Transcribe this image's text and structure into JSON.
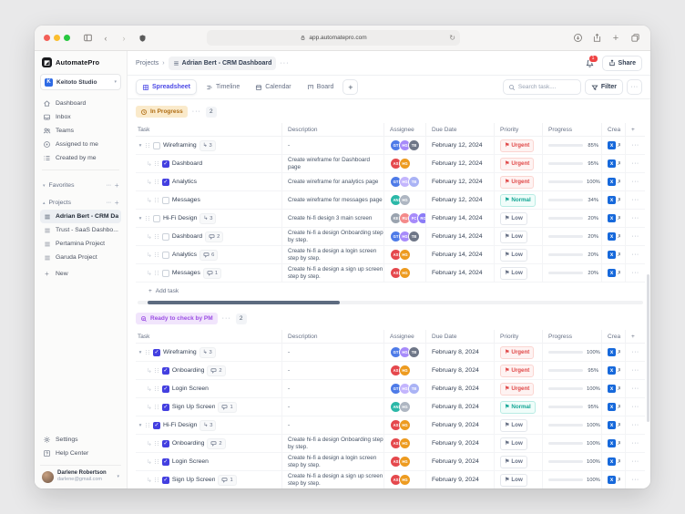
{
  "browser": {
    "url": "app.automatepro.com"
  },
  "brand": {
    "name": "AutomatePro"
  },
  "sidebar": {
    "workspace": {
      "name": "Keitoto Studio",
      "initial": "K"
    },
    "nav": [
      {
        "icon": "home-icon",
        "label": "Dashboard"
      },
      {
        "icon": "inbox-icon",
        "label": "Inbox"
      },
      {
        "icon": "users-icon",
        "label": "Teams"
      },
      {
        "icon": "target-icon",
        "label": "Assigned to me"
      },
      {
        "icon": "list-icon",
        "label": "Created by me"
      }
    ],
    "sections": {
      "favorites": "Favorites",
      "projects": "Projects"
    },
    "projects": [
      {
        "label": "Adrian Bert - CRM Da...",
        "active": true
      },
      {
        "label": "Trust - SaaS Dashbo...",
        "active": false
      },
      {
        "label": "Pertamina Project",
        "active": false
      },
      {
        "label": "Garuda Project",
        "active": false
      }
    ],
    "new_label": "New",
    "footer": [
      {
        "icon": "gear-icon",
        "label": "Settings"
      },
      {
        "icon": "help-icon",
        "label": "Help Center"
      }
    ],
    "user": {
      "name": "Darlene Robertson",
      "email": "darlene@gmail.com"
    }
  },
  "header": {
    "breadcrumb_root": "Projects",
    "project_title": "Adrian Bert - CRM Dashboard",
    "notification_count": "1",
    "share_label": "Share"
  },
  "toolbar": {
    "tabs": [
      {
        "label": "Spreadsheet",
        "icon": "grid-icon",
        "active": true
      },
      {
        "label": "Timeline",
        "icon": "timeline-icon",
        "active": false
      },
      {
        "label": "Calendar",
        "icon": "calendar-icon",
        "active": false
      },
      {
        "label": "Board",
        "icon": "board-icon",
        "active": false
      }
    ],
    "search_placeholder": "Search task....",
    "filter_label": "Filter"
  },
  "table": {
    "columns": [
      "Task",
      "Description",
      "Assignee",
      "Due Date",
      "Priority",
      "Progress",
      "Crea"
    ]
  },
  "add_task_label": "Add task",
  "groups": [
    {
      "label": "In Progress",
      "count": "2",
      "theme": "amber",
      "icon": "clock-icon",
      "scrollbar": true,
      "rows": [
        {
          "type": "parent",
          "checked": false,
          "label": "Wireframing",
          "badge": {
            "kind": "subtask",
            "value": "3"
          },
          "desc": "-",
          "avatars": [
            {
              "t": "GT",
              "c": "#4e7be8"
            },
            {
              "t": "HG",
              "c": "#a78bfa"
            },
            {
              "t": "TB",
              "c": "#6e7687"
            }
          ],
          "due": "February 12, 2024",
          "priority": "Urgent",
          "priority_kind": "urgent",
          "progress": 85
        },
        {
          "type": "child",
          "checked": true,
          "label": "Dashboard",
          "badge": null,
          "desc": "Create wireframe for Dashboard page",
          "avatars": [
            {
              "t": "AS",
              "c": "#e5484d"
            },
            {
              "t": "HG",
              "c": "#ed9b20"
            }
          ],
          "due": "February 12, 2024",
          "priority": "Urgent",
          "priority_kind": "urgent",
          "progress": 95
        },
        {
          "type": "child",
          "checked": true,
          "label": "Analytics",
          "badge": null,
          "desc": "Create wireframe for analytics page",
          "avatars": [
            {
              "t": "GT",
              "c": "#4e7be8"
            },
            {
              "t": "HG",
              "c": "#c3b5fd"
            },
            {
              "t": "TB",
              "c": "#aab3f5"
            }
          ],
          "due": "February 12, 2024",
          "priority": "Urgent",
          "priority_kind": "urgent",
          "progress": 100
        },
        {
          "type": "child",
          "checked": false,
          "label": "Messages",
          "badge": null,
          "desc": "Create wireframe for messages page",
          "avatars": [
            {
              "t": "AN",
              "c": "#2bb8a8"
            },
            {
              "t": "HG",
              "c": "#aeb6c2"
            }
          ],
          "due": "February 12, 2024",
          "priority": "Normal",
          "priority_kind": "normal",
          "progress": 34
        },
        {
          "type": "parent",
          "checked": false,
          "label": "Hi-Fi Design",
          "badge": {
            "kind": "subtask",
            "value": "3"
          },
          "desc": "Create hi-fi design  3 main screen",
          "avatars": [
            {
              "t": "KE",
              "c": "#9aa3af"
            },
            {
              "t": "RU",
              "c": "#f48a8a"
            },
            {
              "t": "FC",
              "c": "#a78bfa"
            },
            {
              "t": "RO",
              "c": "#8b7cf7"
            }
          ],
          "due": "February 14, 2024",
          "priority": "Low",
          "priority_kind": "low",
          "progress": 20
        },
        {
          "type": "child",
          "checked": false,
          "label": "Dashboard",
          "badge": {
            "kind": "comment",
            "value": "2"
          },
          "desc": "Create hi-fi a design Onboarding step by step.",
          "avatars": [
            {
              "t": "GT",
              "c": "#4e7be8"
            },
            {
              "t": "HG",
              "c": "#a78bfa"
            },
            {
              "t": "TB",
              "c": "#6e7687"
            }
          ],
          "due": "February 14, 2024",
          "priority": "Low",
          "priority_kind": "low",
          "progress": 20
        },
        {
          "type": "child",
          "checked": false,
          "label": "Analytics",
          "badge": {
            "kind": "comment",
            "value": "6"
          },
          "desc": "Create hi-fi a design a login screen step by step.",
          "avatars": [
            {
              "t": "AS",
              "c": "#e5484d"
            },
            {
              "t": "HG",
              "c": "#ed9b20"
            }
          ],
          "due": "February 14, 2024",
          "priority": "Low",
          "priority_kind": "low",
          "progress": 20
        },
        {
          "type": "child",
          "checked": false,
          "label": "Messages",
          "badge": {
            "kind": "comment",
            "value": "1"
          },
          "desc": "Create hi-fi a design a sign up screen step by step.",
          "avatars": [
            {
              "t": "AS",
              "c": "#e5484d"
            },
            {
              "t": "HG",
              "c": "#ed9b20"
            }
          ],
          "due": "February 14, 2024",
          "priority": "Low",
          "priority_kind": "low",
          "progress": 20
        }
      ]
    },
    {
      "label": "Ready to check by PM",
      "count": "2",
      "theme": "purple",
      "icon": "check-search-icon",
      "scrollbar": false,
      "rows": [
        {
          "type": "parent",
          "checked": true,
          "label": "Wireframing",
          "badge": {
            "kind": "subtask",
            "value": "3"
          },
          "desc": "-",
          "avatars": [
            {
              "t": "GT",
              "c": "#4e7be8"
            },
            {
              "t": "HG",
              "c": "#a78bfa"
            },
            {
              "t": "TB",
              "c": "#6e7687"
            }
          ],
          "due": "February 8, 2024",
          "priority": "Urgent",
          "priority_kind": "urgent",
          "progress": 100
        },
        {
          "type": "child",
          "checked": true,
          "label": "Onboarding",
          "badge": {
            "kind": "comment",
            "value": "2"
          },
          "desc": "-",
          "avatars": [
            {
              "t": "AS",
              "c": "#e5484d"
            },
            {
              "t": "HG",
              "c": "#ed9b20"
            }
          ],
          "due": "February 8, 2024",
          "priority": "Urgent",
          "priority_kind": "urgent",
          "progress": 95
        },
        {
          "type": "child",
          "checked": true,
          "label": "Login Screen",
          "badge": null,
          "desc": "-",
          "avatars": [
            {
              "t": "GT",
              "c": "#4e7be8"
            },
            {
              "t": "HG",
              "c": "#c3b5fd"
            },
            {
              "t": "TB",
              "c": "#aab3f5"
            }
          ],
          "due": "February 8, 2024",
          "priority": "Urgent",
          "priority_kind": "urgent",
          "progress": 100
        },
        {
          "type": "child",
          "checked": true,
          "label": "Sign Up Screen",
          "badge": {
            "kind": "comment",
            "value": "1"
          },
          "desc": "-",
          "avatars": [
            {
              "t": "AN",
              "c": "#2bb8a8"
            },
            {
              "t": "HG",
              "c": "#aeb6c2"
            }
          ],
          "due": "February 8, 2024",
          "priority": "Normal",
          "priority_kind": "normal",
          "progress": 95
        },
        {
          "type": "parent",
          "checked": true,
          "label": "Hi-Fi Design",
          "badge": {
            "kind": "subtask",
            "value": "3"
          },
          "desc": "-",
          "avatars": [
            {
              "t": "AS",
              "c": "#e5484d"
            },
            {
              "t": "HG",
              "c": "#ed9b20"
            }
          ],
          "due": "February 9, 2024",
          "priority": "Low",
          "priority_kind": "low",
          "progress": 100
        },
        {
          "type": "child",
          "checked": true,
          "label": "Onboarding",
          "badge": {
            "kind": "comment",
            "value": "2"
          },
          "desc": "Create hi-fi a design Onboarding step by step.",
          "avatars": [
            {
              "t": "AS",
              "c": "#e5484d"
            },
            {
              "t": "HG",
              "c": "#ed9b20"
            }
          ],
          "due": "February 9, 2024",
          "priority": "Low",
          "priority_kind": "low",
          "progress": 100
        },
        {
          "type": "child",
          "checked": true,
          "label": "Login Screen",
          "badge": null,
          "desc": "Create hi-fi a design a login screen step by step.",
          "avatars": [
            {
              "t": "AS",
              "c": "#e5484d"
            },
            {
              "t": "HG",
              "c": "#ed9b20"
            }
          ],
          "due": "February 9, 2024",
          "priority": "Low",
          "priority_kind": "low",
          "progress": 100
        },
        {
          "type": "child",
          "checked": true,
          "label": "Sign Up Screen",
          "badge": {
            "kind": "comment",
            "value": "1"
          },
          "desc": "Create hi-fi a design a sign up screen step by step.",
          "avatars": [
            {
              "t": "AS",
              "c": "#e5484d"
            },
            {
              "t": "HG",
              "c": "#ed9b20"
            }
          ],
          "due": "February 9, 2024",
          "priority": "Low",
          "priority_kind": "low",
          "progress": 100
        }
      ]
    }
  ],
  "colors": {
    "accent": "#4b48e5",
    "progress_fill": "#5b55e3",
    "urgent": "#e04848",
    "normal": "#12a594",
    "low": "#667085",
    "amber_text": "#b06d12",
    "purple_text": "#9b4de3"
  }
}
